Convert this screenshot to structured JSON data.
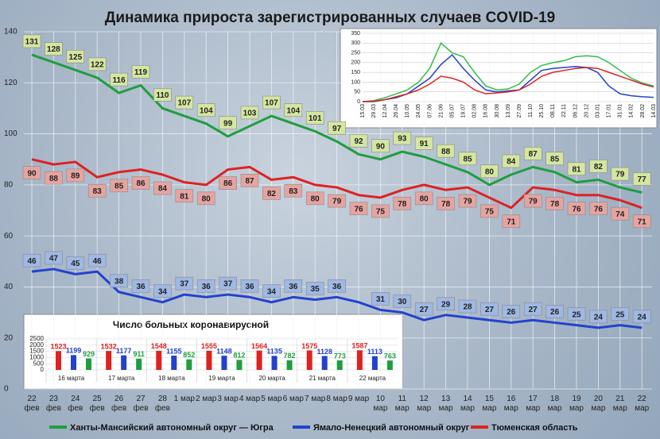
{
  "chart_data": [
    {
      "type": "line",
      "title": "Динамика прироста зарегистрированных случаев COVID-19",
      "categories": [
        "22\nфев",
        "23\nфев",
        "24\nфев",
        "25\nфев",
        "26\nфев",
        "27\nфев",
        "28\nфев",
        "1 мар",
        "2 мар",
        "3 мар",
        "4 мар",
        "5 мар",
        "6 мар",
        "7 мар",
        "8 мар",
        "9 мар",
        "10\nмар",
        "11\nмар",
        "12\nмар",
        "13\nмар",
        "14\nмар",
        "15\nмар",
        "16\nмар",
        "17\nмар",
        "18\nмар",
        "19\nмар",
        "20\nмар",
        "21\nмар",
        "22\nмар"
      ],
      "series": [
        {
          "name": "Ханты-Мансийский автономный округ — Югра",
          "color": "#1e9e3e",
          "values": [
            131,
            128,
            125,
            122,
            116,
            119,
            110,
            107,
            104,
            99,
            103,
            107,
            104,
            101,
            97,
            92,
            90,
            93,
            91,
            88,
            85,
            80,
            84,
            87,
            85,
            81,
            82,
            79,
            77
          ]
        },
        {
          "name": "Ямало-Ненецкий автономный округ",
          "color": "#2342cc",
          "values": [
            46,
            47,
            45,
            46,
            38,
            36,
            34,
            37,
            36,
            37,
            36,
            34,
            36,
            35,
            36,
            34,
            31,
            30,
            27,
            29,
            28,
            27,
            26,
            27,
            26,
            25,
            24,
            25,
            24
          ],
          "value_labels": [
            "46",
            "47",
            "45",
            "46",
            "38",
            "36",
            "34",
            "37",
            "36",
            "37",
            "36",
            "34",
            "36",
            "35",
            "36",
            null,
            "31",
            "30",
            "27",
            "29",
            "28",
            "27",
            "26",
            "27",
            "26",
            "25",
            "24",
            "25",
            "24"
          ]
        },
        {
          "name": "Тюменская область",
          "color": "#dd2222",
          "values": [
            90,
            88,
            89,
            83,
            85,
            86,
            84,
            81,
            80,
            86,
            87,
            82,
            83,
            80,
            79,
            76,
            75,
            78,
            80,
            78,
            79,
            75,
            71,
            79,
            78,
            76,
            76,
            74,
            71
          ]
        }
      ],
      "ylim": [
        0,
        140
      ],
      "yticks": [
        0,
        20,
        40,
        60,
        80,
        100,
        120,
        140
      ],
      "grid": true,
      "legend": "bottom"
    },
    {
      "type": "line",
      "categories": [
        "15.03",
        "29.03",
        "12.04",
        "26.04",
        "10.05",
        "24.05",
        "07.06",
        "21.06",
        "05.07",
        "19.07",
        "02.08",
        "16.08",
        "30.08",
        "13.09",
        "27.09",
        "11.10",
        "25.10",
        "08.11",
        "22.11",
        "06.12",
        "20.12",
        "03.01",
        "17.01",
        "31.01",
        "14.02",
        "28.02",
        "14.03"
      ],
      "series": [
        {
          "color": "#2fbf4a",
          "values": [
            0,
            5,
            20,
            40,
            60,
            100,
            170,
            300,
            250,
            230,
            150,
            80,
            60,
            65,
            90,
            150,
            185,
            200,
            210,
            230,
            235,
            230,
            200,
            160,
            120,
            95,
            80
          ]
        },
        {
          "color": "#2342cc",
          "values": [
            0,
            0,
            10,
            20,
            40,
            80,
            120,
            190,
            240,
            170,
            110,
            60,
            50,
            55,
            60,
            110,
            160,
            170,
            175,
            180,
            175,
            150,
            80,
            40,
            30,
            25,
            22
          ]
        },
        {
          "color": "#dd2222",
          "values": [
            0,
            2,
            10,
            25,
            40,
            60,
            90,
            130,
            120,
            100,
            60,
            40,
            45,
            50,
            60,
            90,
            130,
            150,
            160,
            170,
            175,
            170,
            150,
            130,
            110,
            90,
            75
          ]
        }
      ],
      "ylim": [
        0,
        350
      ],
      "yticks": [
        0,
        50,
        100,
        150,
        200,
        250,
        300,
        350
      ],
      "grid": true
    },
    {
      "type": "bar",
      "title": "Число больных  коронавирусной",
      "categories": [
        "16 марта",
        "17 марта",
        "18 марта",
        "19 марта",
        "20 марта",
        "21 марта",
        "22 марта"
      ],
      "series": [
        {
          "color": "#dd2222",
          "values": [
            1523,
            1532,
            1548,
            1555,
            1564,
            1575,
            1587
          ]
        },
        {
          "color": "#2342cc",
          "values": [
            1199,
            1177,
            1155,
            1148,
            1135,
            1128,
            1113
          ]
        },
        {
          "color": "#1e9e3e",
          "values": [
            929,
            911,
            852,
            812,
            782,
            773,
            763
          ]
        }
      ],
      "ylim": [
        0,
        2500
      ],
      "yticks": [
        0,
        500,
        1000,
        1500,
        2000,
        2500
      ],
      "grid": true
    }
  ]
}
